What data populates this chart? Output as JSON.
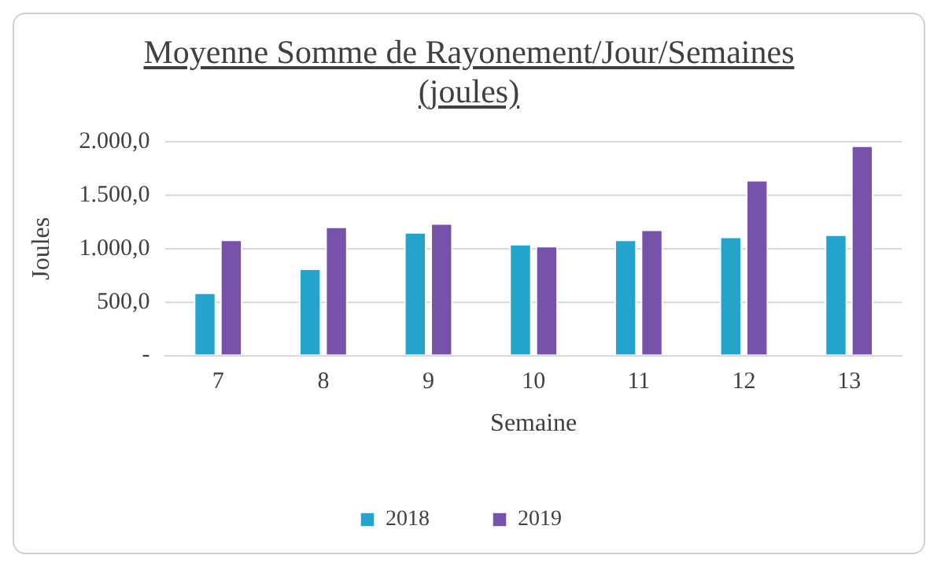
{
  "chart_data": {
    "type": "bar",
    "title": "Moyenne Somme de Rayonement/Jour/Semaines (joules)",
    "xlabel": "Semaine",
    "ylabel": "Joules",
    "categories": [
      "7",
      "8",
      "9",
      "10",
      "11",
      "12",
      "13"
    ],
    "series": [
      {
        "name": "2018",
        "color": "#24a3cc",
        "values": [
          590,
          815,
          1155,
          1045,
          1085,
          1113,
          1132
        ]
      },
      {
        "name": "2019",
        "color": "#7652ab",
        "values": [
          1085,
          1206,
          1237,
          1027,
          1179,
          1642,
          1965
        ]
      }
    ],
    "ylim": [
      0,
      2000
    ],
    "yticks": [
      {
        "value": 0,
        "label": "-"
      },
      {
        "value": 500,
        "label": "500,0"
      },
      {
        "value": 1000,
        "label": "1.000,0"
      },
      {
        "value": 1500,
        "label": "1.500,0"
      },
      {
        "value": 2000,
        "label": "2.000,0"
      }
    ],
    "grid": "y",
    "legend": "bottom"
  }
}
